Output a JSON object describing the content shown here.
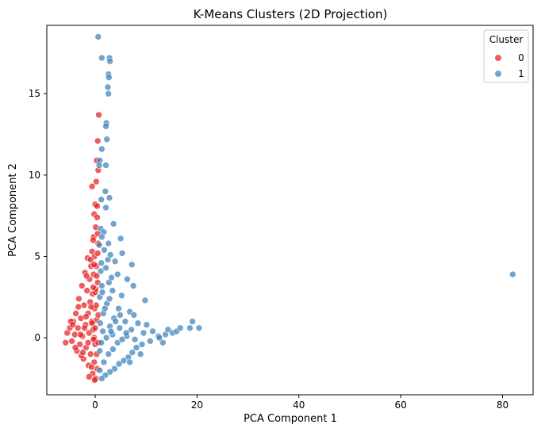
{
  "chart_data": {
    "type": "scatter",
    "title": "K-Means Clusters (2D Projection)",
    "xlabel": "PCA Component 1",
    "ylabel": "PCA Component 2",
    "xlim": [
      -9.5,
      86
    ],
    "ylim": [
      -3.5,
      19.2
    ],
    "xticks": [
      0,
      20,
      40,
      60,
      80
    ],
    "yticks": [
      0,
      5,
      10,
      15
    ],
    "grid": false,
    "legend": {
      "title": "Cluster",
      "placement": "top-right"
    },
    "series": [
      {
        "name": "0",
        "color": "#e41a1c",
        "opacity": 0.7,
        "points": [
          [
            -5.8,
            -0.3
          ],
          [
            -5.5,
            0.3
          ],
          [
            -5.0,
            0.6
          ],
          [
            -4.6,
            -0.2
          ],
          [
            -4.3,
            1.0
          ],
          [
            -4.0,
            0.2
          ],
          [
            -3.8,
            1.5
          ],
          [
            -3.6,
            -0.8
          ],
          [
            -3.4,
            0.6
          ],
          [
            -3.2,
            2.4
          ],
          [
            -3.0,
            -0.4
          ],
          [
            -2.8,
            1.2
          ],
          [
            -2.6,
            3.2
          ],
          [
            -2.5,
            0.1
          ],
          [
            -2.3,
            -1.3
          ],
          [
            -2.2,
            2.0
          ],
          [
            -2.0,
            4.0
          ],
          [
            -1.9,
            0.8
          ],
          [
            -1.8,
            -0.6
          ],
          [
            -1.6,
            2.9
          ],
          [
            -1.5,
            4.9
          ],
          [
            -1.4,
            1.5
          ],
          [
            -1.3,
            -1.7
          ],
          [
            -1.2,
            0.3
          ],
          [
            -1.1,
            3.6
          ],
          [
            -1.0,
            2.2
          ],
          [
            -0.9,
            -1.0
          ],
          [
            -0.8,
            4.4
          ],
          [
            -0.7,
            1.0
          ],
          [
            -0.6,
            5.3
          ],
          [
            -0.5,
            -2.2
          ],
          [
            -0.5,
            2.7
          ],
          [
            -0.4,
            0.5
          ],
          [
            -0.3,
            6.2
          ],
          [
            -0.3,
            3.9
          ],
          [
            -0.2,
            -1.5
          ],
          [
            -0.2,
            7.6
          ],
          [
            -0.1,
            1.8
          ],
          [
            -0.1,
            5.0
          ],
          [
            0.0,
            8.2
          ],
          [
            0.0,
            -0.4
          ],
          [
            0.0,
            2.8
          ],
          [
            0.1,
            6.8
          ],
          [
            0.1,
            -2.5
          ],
          [
            0.2,
            9.6
          ],
          [
            0.2,
            4.4
          ],
          [
            0.3,
            10.9
          ],
          [
            0.3,
            1.1
          ],
          [
            0.4,
            7.4
          ],
          [
            0.4,
            -1.9
          ],
          [
            0.5,
            3.4
          ],
          [
            0.5,
            12.1
          ],
          [
            0.6,
            10.3
          ],
          [
            0.6,
            5.8
          ],
          [
            0.7,
            13.7
          ],
          [
            -0.6,
            9.3
          ],
          [
            0.4,
            8.1
          ],
          [
            -0.4,
            6.0
          ],
          [
            0.1,
            3.0
          ],
          [
            -0.2,
            0.0
          ],
          [
            0.3,
            -1.0
          ],
          [
            -0.7,
            -1.8
          ],
          [
            -1.2,
            -2.4
          ],
          [
            -0.1,
            -2.6
          ],
          [
            -2.1,
            0.6
          ],
          [
            -3.3,
            1.9
          ],
          [
            -2.7,
            -1.1
          ],
          [
            -4.8,
            1.0
          ],
          [
            -1.7,
            3.8
          ],
          [
            -0.9,
            4.8
          ],
          [
            0.5,
            5.2
          ],
          [
            0.2,
            2.0
          ],
          [
            -0.6,
            0.9
          ],
          [
            -1.4,
            -0.3
          ],
          [
            -2.4,
            -0.9
          ],
          [
            -3.9,
            -0.6
          ],
          [
            -0.3,
            -0.1
          ],
          [
            0.0,
            0.6
          ],
          [
            -0.8,
            1.9
          ],
          [
            -1.8,
            1.3
          ],
          [
            -2.9,
            0.2
          ],
          [
            -4.4,
            0.8
          ],
          [
            -0.4,
            3.1
          ],
          [
            0.3,
            3.8
          ],
          [
            0.6,
            1.4
          ],
          [
            0.6,
            -0.3
          ],
          [
            -0.2,
            4.5
          ],
          [
            0.5,
            6.4
          ]
        ]
      },
      {
        "name": "1",
        "color": "#377eb8",
        "opacity": 0.7,
        "points": [
          [
            0.6,
            18.5
          ],
          [
            1.3,
            17.2
          ],
          [
            2.8,
            17.2
          ],
          [
            2.9,
            17.0
          ],
          [
            2.6,
            16.2
          ],
          [
            2.7,
            16.0
          ],
          [
            2.5,
            15.4
          ],
          [
            2.6,
            15.0
          ],
          [
            2.2,
            13.2
          ],
          [
            2.1,
            13.0
          ],
          [
            2.3,
            12.2
          ],
          [
            1.3,
            11.6
          ],
          [
            2.1,
            10.6
          ],
          [
            0.9,
            10.9
          ],
          [
            0.8,
            10.6
          ],
          [
            2.0,
            9.0
          ],
          [
            1.2,
            8.5
          ],
          [
            2.8,
            8.6
          ],
          [
            2.1,
            8.0
          ],
          [
            3.6,
            7.0
          ],
          [
            1.1,
            6.7
          ],
          [
            1.7,
            6.5
          ],
          [
            1.3,
            6.2
          ],
          [
            5.0,
            6.1
          ],
          [
            2.6,
            5.8
          ],
          [
            0.8,
            5.7
          ],
          [
            5.3,
            5.2
          ],
          [
            7.2,
            4.5
          ],
          [
            3.9,
            4.7
          ],
          [
            2.1,
            4.3
          ],
          [
            1.1,
            4.1
          ],
          [
            4.4,
            3.9
          ],
          [
            6.3,
            3.6
          ],
          [
            2.7,
            3.4
          ],
          [
            1.3,
            3.2
          ],
          [
            7.5,
            3.2
          ],
          [
            3.4,
            2.9
          ],
          [
            5.2,
            2.6
          ],
          [
            9.8,
            2.3
          ],
          [
            0.9,
            2.5
          ],
          [
            2.3,
            2.1
          ],
          [
            4.6,
            1.8
          ],
          [
            6.8,
            1.6
          ],
          [
            1.6,
            1.5
          ],
          [
            7.6,
            1.4
          ],
          [
            3.7,
            1.2
          ],
          [
            5.9,
            1.0
          ],
          [
            1.0,
            0.9
          ],
          [
            8.4,
            0.9
          ],
          [
            2.9,
            0.7
          ],
          [
            4.8,
            0.6
          ],
          [
            10.1,
            0.8
          ],
          [
            7.1,
            0.5
          ],
          [
            1.5,
            0.4
          ],
          [
            9.5,
            0.3
          ],
          [
            11.3,
            0.4
          ],
          [
            3.4,
            0.2
          ],
          [
            6.2,
            0.1
          ],
          [
            12.4,
            0.1
          ],
          [
            13.8,
            0.2
          ],
          [
            14.3,
            0.5
          ],
          [
            15.2,
            0.3
          ],
          [
            16.0,
            0.4
          ],
          [
            16.7,
            0.6
          ],
          [
            18.6,
            0.6
          ],
          [
            19.1,
            1.0
          ],
          [
            20.4,
            0.6
          ],
          [
            13.3,
            -0.3
          ],
          [
            12.6,
            0.0
          ],
          [
            10.8,
            -0.2
          ],
          [
            9.2,
            -0.4
          ],
          [
            8.1,
            -0.6
          ],
          [
            7.3,
            -0.9
          ],
          [
            6.5,
            -1.2
          ],
          [
            5.6,
            -1.4
          ],
          [
            4.7,
            -1.6
          ],
          [
            3.8,
            -1.9
          ],
          [
            2.9,
            -2.1
          ],
          [
            2.0,
            -2.3
          ],
          [
            1.3,
            -2.5
          ],
          [
            0.9,
            -2.0
          ],
          [
            1.7,
            -1.5
          ],
          [
            2.6,
            -1.0
          ],
          [
            3.5,
            -0.7
          ],
          [
            4.4,
            -0.3
          ],
          [
            5.3,
            -0.1
          ],
          [
            6.1,
            0.3
          ],
          [
            7.8,
            -0.1
          ],
          [
            8.9,
            -1.0
          ],
          [
            6.8,
            -1.5
          ],
          [
            0.9,
            -0.8
          ],
          [
            1.2,
            -0.3
          ],
          [
            2.2,
            0.0
          ],
          [
            3.1,
            0.4
          ],
          [
            4.0,
            1.0
          ],
          [
            4.9,
            1.4
          ],
          [
            1.9,
            1.8
          ],
          [
            2.8,
            2.4
          ],
          [
            1.4,
            2.8
          ],
          [
            3.2,
            3.7
          ],
          [
            2.5,
            4.8
          ],
          [
            1.8,
            5.4
          ],
          [
            1.2,
            4.6
          ],
          [
            3.0,
            5.1
          ],
          [
            82.0,
            3.9
          ]
        ]
      }
    ]
  }
}
